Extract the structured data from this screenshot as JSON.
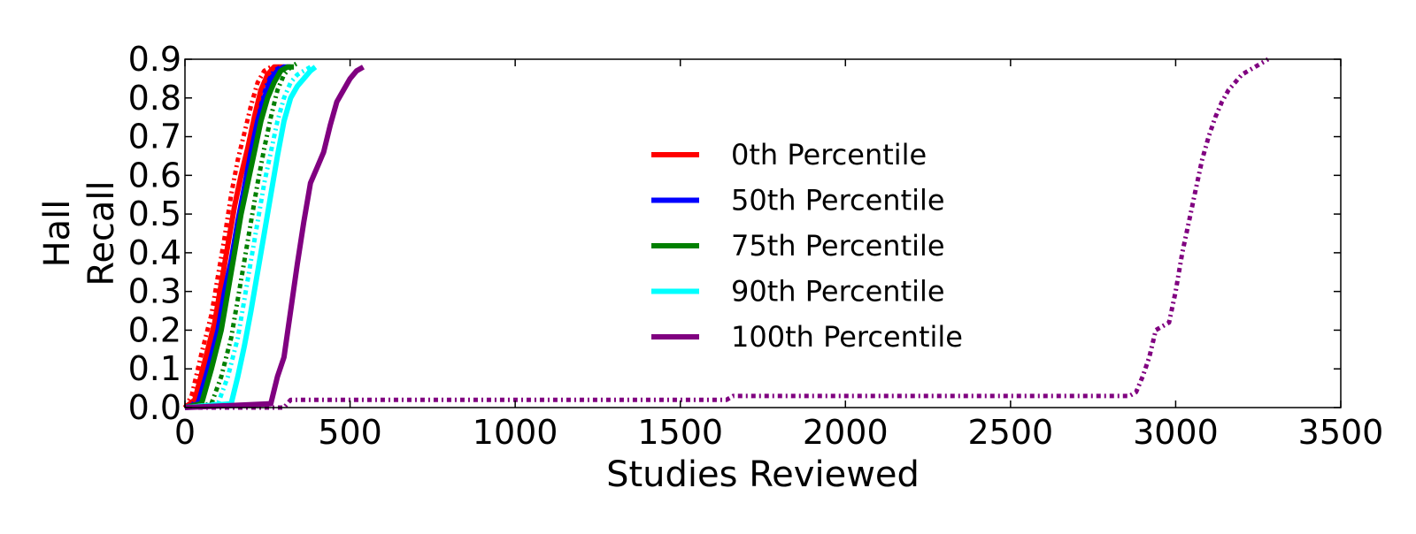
{
  "chart_data": {
    "type": "line",
    "title": "",
    "xlabel": "Studies Reviewed",
    "ylabel": [
      "Hall",
      "Recall"
    ],
    "xlim": [
      0,
      3500
    ],
    "ylim": [
      0,
      0.9
    ],
    "xticks": [
      0,
      500,
      1000,
      1500,
      2000,
      2500,
      3000,
      3500
    ],
    "xtick_labels": [
      "0",
      "500",
      "1000",
      "1500",
      "2000",
      "2500",
      "3000",
      "3500"
    ],
    "yticks": [
      0,
      0.1,
      0.2,
      0.3,
      0.4,
      0.5,
      0.6,
      0.7,
      0.8,
      0.9
    ],
    "ytick_labels": [
      "0.0",
      "0.1",
      "0.2",
      "0.3",
      "0.4",
      "0.5",
      "0.6",
      "0.7",
      "0.8",
      "0.9"
    ],
    "grid": false,
    "legend_position": "center",
    "series": [
      {
        "name": "0th Percentile",
        "color": "#ff0000",
        "style": "solid",
        "x": [
          0,
          30,
          60,
          90,
          110,
          130,
          150,
          170,
          190,
          210,
          230,
          250,
          270,
          290,
          300
        ],
        "y": [
          0,
          0.02,
          0.12,
          0.22,
          0.32,
          0.42,
          0.52,
          0.6,
          0.67,
          0.75,
          0.82,
          0.86,
          0.88,
          0.88,
          0.88
        ]
      },
      {
        "name": "0th Percentile",
        "color": "#ff0000",
        "style": "dashdot",
        "x": [
          0,
          20,
          50,
          80,
          100,
          120,
          140,
          160,
          180,
          200,
          220,
          240,
          260,
          280
        ],
        "y": [
          0,
          0.03,
          0.14,
          0.24,
          0.34,
          0.44,
          0.55,
          0.64,
          0.71,
          0.78,
          0.84,
          0.87,
          0.88,
          0.88
        ]
      },
      {
        "name": "50th Percentile",
        "color": "#0000ff",
        "style": "solid",
        "x": [
          0,
          40,
          70,
          100,
          120,
          140,
          160,
          180,
          200,
          220,
          240,
          260,
          280,
          300,
          320
        ],
        "y": [
          0,
          0.01,
          0.1,
          0.2,
          0.3,
          0.38,
          0.48,
          0.57,
          0.66,
          0.74,
          0.8,
          0.85,
          0.87,
          0.88,
          0.88
        ]
      },
      {
        "name": "50th Percentile",
        "color": "#0000ff",
        "style": "dashdot",
        "x": [
          0,
          50,
          80,
          110,
          130,
          150,
          170,
          190,
          210,
          230,
          250,
          270,
          290,
          310
        ],
        "y": [
          0,
          0.02,
          0.12,
          0.22,
          0.32,
          0.42,
          0.52,
          0.61,
          0.7,
          0.78,
          0.84,
          0.87,
          0.88,
          0.88
        ]
      },
      {
        "name": "75th Percentile",
        "color": "#008000",
        "style": "solid",
        "x": [
          0,
          50,
          80,
          110,
          130,
          150,
          170,
          190,
          210,
          230,
          250,
          270,
          290,
          310,
          330
        ],
        "y": [
          0,
          0.01,
          0.1,
          0.2,
          0.3,
          0.4,
          0.5,
          0.58,
          0.66,
          0.74,
          0.8,
          0.84,
          0.87,
          0.88,
          0.88
        ]
      },
      {
        "name": "75th Percentile",
        "color": "#008000",
        "style": "dashdot",
        "x": [
          0,
          80,
          110,
          140,
          160,
          180,
          200,
          220,
          240,
          260,
          280,
          300,
          320,
          340
        ],
        "y": [
          0,
          0.01,
          0.08,
          0.18,
          0.28,
          0.38,
          0.48,
          0.58,
          0.67,
          0.75,
          0.82,
          0.86,
          0.88,
          0.89
        ]
      },
      {
        "name": "90th Percentile",
        "color": "#00ffff",
        "style": "solid",
        "x": [
          0,
          140,
          160,
          180,
          200,
          220,
          240,
          260,
          280,
          300,
          320,
          340,
          360,
          380,
          395
        ],
        "y": [
          0,
          0.01,
          0.08,
          0.16,
          0.25,
          0.35,
          0.45,
          0.55,
          0.65,
          0.74,
          0.8,
          0.83,
          0.85,
          0.87,
          0.88
        ]
      },
      {
        "name": "90th Percentile",
        "color": "#00ffff",
        "style": "dashdot",
        "x": [
          0,
          100,
          130,
          160,
          180,
          200,
          220,
          240,
          260,
          280,
          300,
          320,
          340,
          360,
          380
        ],
        "y": [
          0,
          0.01,
          0.08,
          0.18,
          0.28,
          0.38,
          0.48,
          0.58,
          0.66,
          0.74,
          0.8,
          0.84,
          0.86,
          0.87,
          0.88
        ]
      },
      {
        "name": "100th Percentile",
        "color": "#800080",
        "style": "solid",
        "x": [
          0,
          260,
          280,
          300,
          320,
          340,
          360,
          380,
          400,
          420,
          440,
          460,
          480,
          500,
          520,
          540
        ],
        "y": [
          0,
          0.01,
          0.08,
          0.13,
          0.25,
          0.37,
          0.48,
          0.58,
          0.62,
          0.66,
          0.73,
          0.79,
          0.82,
          0.85,
          0.87,
          0.88
        ]
      },
      {
        "name": "100th Percentile",
        "color": "#800080",
        "style": "dashdot",
        "x": [
          0,
          300,
          320,
          1640,
          1660,
          2860,
          2880,
          2900,
          2920,
          2940,
          2960,
          2980,
          3000,
          3020,
          3040,
          3060,
          3080,
          3100,
          3120,
          3140,
          3160,
          3180,
          3200,
          3220,
          3240,
          3260,
          3280
        ],
        "y": [
          0,
          0,
          0.02,
          0.02,
          0.03,
          0.03,
          0.04,
          0.08,
          0.13,
          0.2,
          0.21,
          0.22,
          0.3,
          0.4,
          0.48,
          0.56,
          0.64,
          0.7,
          0.75,
          0.79,
          0.82,
          0.84,
          0.86,
          0.87,
          0.88,
          0.89,
          0.9
        ]
      }
    ],
    "legend": [
      {
        "label": "0th Percentile",
        "color": "#ff0000"
      },
      {
        "label": "50th Percentile",
        "color": "#0000ff"
      },
      {
        "label": "75th Percentile",
        "color": "#008000"
      },
      {
        "label": "90th Percentile",
        "color": "#00ffff"
      },
      {
        "label": "100th Percentile",
        "color": "#800080"
      }
    ]
  }
}
